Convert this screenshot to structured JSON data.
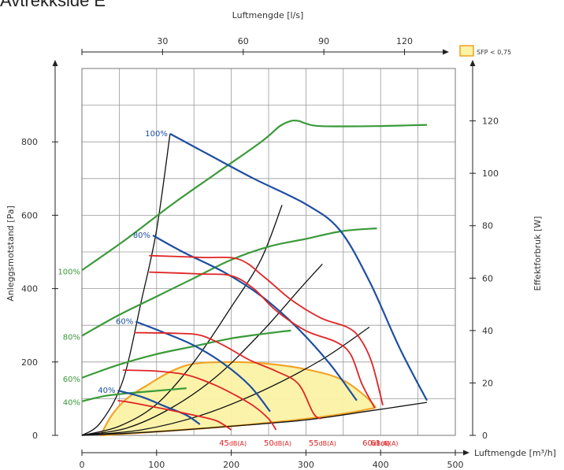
{
  "page": {
    "title": "Avtrekkside E"
  },
  "colors": {
    "fan_curve": "#1f4fa0",
    "power_curve": "#3a9a3a",
    "noise_curve": "#e02424",
    "system_curve": "#111111",
    "sfp_fill": "#fbf3a6",
    "sfp_edge": "#f2a01e",
    "grid": "#9a9a9a"
  },
  "chart_data": {
    "type": "line",
    "axes": {
      "x_bottom": {
        "label": "Luftmengde [m³/h]",
        "range": [
          0,
          500
        ],
        "ticks": [
          0,
          100,
          200,
          300,
          400,
          500
        ]
      },
      "x_top": {
        "label": "Luftmengde [l/s]",
        "ticks": [
          30,
          60,
          90,
          120
        ]
      },
      "y_left": {
        "label": "Anleggsmotstand [Pa]",
        "range": [
          0,
          1000
        ],
        "ticks": [
          0,
          200,
          400,
          600,
          800
        ]
      },
      "y_right": {
        "label": "Effektforbruk [W]",
        "range": [
          0,
          140
        ],
        "ticks": [
          0,
          20,
          40,
          60,
          80,
          100,
          120
        ]
      }
    },
    "grid": true,
    "legend": {
      "position": "top-right",
      "label": "SFP < 0,75"
    },
    "fan_curves": [
      {
        "name": "100%",
        "points": [
          [
            118,
            822
          ],
          [
            170,
            765
          ],
          [
            230,
            700
          ],
          [
            300,
            630
          ],
          [
            345,
            560
          ],
          [
            385,
            420
          ],
          [
            425,
            240
          ],
          [
            462,
            95
          ]
        ]
      },
      {
        "name": "80%",
        "points": [
          [
            95,
            545
          ],
          [
            135,
            500
          ],
          [
            190,
            445
          ],
          [
            240,
            380
          ],
          [
            285,
            300
          ],
          [
            330,
            200
          ],
          [
            368,
            95
          ]
        ]
      },
      {
        "name": "60%",
        "points": [
          [
            72,
            310
          ],
          [
            110,
            280
          ],
          [
            150,
            245
          ],
          [
            190,
            195
          ],
          [
            225,
            135
          ],
          [
            252,
            65
          ]
        ]
      },
      {
        "name": "40%",
        "points": [
          [
            48,
            122
          ],
          [
            80,
            105
          ],
          [
            110,
            80
          ],
          [
            140,
            55
          ],
          [
            158,
            30
          ]
        ]
      }
    ],
    "power_curves": [
      {
        "name": "100%",
        "y_axis": "right",
        "points": [
          [
            0,
            63
          ],
          [
            60,
            75
          ],
          [
            120,
            88
          ],
          [
            180,
            100
          ],
          [
            240,
            112
          ],
          [
            265,
            118
          ],
          [
            280,
            120
          ],
          [
            290,
            120
          ],
          [
            300,
            119
          ],
          [
            320,
            118
          ],
          [
            390,
            118
          ],
          [
            462,
            118.5
          ]
        ]
      },
      {
        "name": "80%",
        "y_axis": "right",
        "points": [
          [
            0,
            38
          ],
          [
            50,
            46
          ],
          [
            100,
            53
          ],
          [
            150,
            60
          ],
          [
            200,
            67
          ],
          [
            250,
            72
          ],
          [
            300,
            75
          ],
          [
            350,
            78
          ],
          [
            395,
            79
          ]
        ]
      },
      {
        "name": "60%",
        "y_axis": "right",
        "points": [
          [
            0,
            22
          ],
          [
            50,
            27
          ],
          [
            100,
            31
          ],
          [
            150,
            34
          ],
          [
            200,
            37
          ],
          [
            250,
            39
          ],
          [
            280,
            40
          ]
        ]
      },
      {
        "name": "40%",
        "y_axis": "right",
        "points": [
          [
            0,
            13
          ],
          [
            30,
            15
          ],
          [
            60,
            16
          ],
          [
            100,
            17
          ],
          [
            140,
            18
          ]
        ]
      }
    ],
    "noise_curves": [
      {
        "name": "45dB(A)",
        "points": [
          [
            48,
            95
          ],
          [
            70,
            88
          ],
          [
            110,
            72
          ],
          [
            150,
            55
          ],
          [
            180,
            40
          ],
          [
            200,
            15
          ]
        ]
      },
      {
        "name": "50dB(A)",
        "points": [
          [
            55,
            178
          ],
          [
            100,
            175
          ],
          [
            140,
            165
          ],
          [
            175,
            140
          ],
          [
            205,
            110
          ],
          [
            230,
            80
          ],
          [
            250,
            45
          ],
          [
            260,
            15
          ]
        ]
      },
      {
        "name": "55dB(A)",
        "points": [
          [
            70,
            280
          ],
          [
            130,
            278
          ],
          [
            160,
            272
          ],
          [
            190,
            245
          ],
          [
            225,
            205
          ],
          [
            260,
            175
          ],
          [
            290,
            140
          ],
          [
            310,
            60
          ],
          [
            320,
            45
          ]
        ]
      },
      {
        "name": "60dB(A)",
        "points": [
          [
            90,
            445
          ],
          [
            160,
            440
          ],
          [
            200,
            435
          ],
          [
            230,
            400
          ],
          [
            260,
            340
          ],
          [
            300,
            285
          ],
          [
            340,
            255
          ],
          [
            360,
            220
          ],
          [
            375,
            140
          ],
          [
            392,
            75
          ]
        ]
      },
      {
        "name": "61dB(A)",
        "points": [
          [
            90,
            490
          ],
          [
            160,
            485
          ],
          [
            210,
            480
          ],
          [
            245,
            430
          ],
          [
            280,
            370
          ],
          [
            320,
            320
          ],
          [
            355,
            295
          ],
          [
            372,
            265
          ],
          [
            388,
            200
          ],
          [
            403,
            82
          ]
        ]
      }
    ],
    "system_curves": [
      {
        "points": [
          [
            0,
            0
          ],
          [
            25,
            35
          ],
          [
            55,
            150
          ],
          [
            80,
            370
          ],
          [
            100,
            560
          ],
          [
            118,
            822
          ]
        ]
      },
      {
        "points": [
          [
            0,
            0
          ],
          [
            50,
            25
          ],
          [
            100,
            85
          ],
          [
            150,
            200
          ],
          [
            200,
            350
          ],
          [
            240,
            480
          ],
          [
            268,
            628
          ]
        ]
      },
      {
        "points": [
          [
            0,
            0
          ],
          [
            60,
            20
          ],
          [
            120,
            75
          ],
          [
            180,
            160
          ],
          [
            240,
            280
          ],
          [
            290,
            395
          ],
          [
            322,
            467
          ]
        ]
      },
      {
        "points": [
          [
            0,
            0
          ],
          [
            80,
            15
          ],
          [
            160,
            55
          ],
          [
            240,
            120
          ],
          [
            320,
            205
          ],
          [
            385,
            295
          ]
        ]
      },
      {
        "points": [
          [
            0,
            0
          ],
          [
            100,
            10
          ],
          [
            200,
            25
          ],
          [
            300,
            42
          ],
          [
            380,
            65
          ],
          [
            462,
            90
          ]
        ]
      }
    ],
    "sfp_region": {
      "label": "SFP < 0,75",
      "points": [
        [
          25,
          0
        ],
        [
          40,
          55
        ],
        [
          60,
          100
        ],
        [
          90,
          140
        ],
        [
          120,
          175
        ],
        [
          150,
          195
        ],
        [
          200,
          200
        ],
        [
          250,
          195
        ],
        [
          300,
          180
        ],
        [
          350,
          150
        ],
        [
          390,
          85
        ],
        [
          380,
          70
        ],
        [
          300,
          45
        ],
        [
          200,
          25
        ],
        [
          100,
          10
        ],
        [
          25,
          0
        ]
      ]
    },
    "labels": {
      "fan_speed": [
        {
          "text": "100%",
          "anchor": "fan_curves.0"
        },
        {
          "text": "80%",
          "anchor": "fan_curves.1"
        },
        {
          "text": "60%",
          "anchor": "fan_curves.2"
        },
        {
          "text": "40%",
          "anchor": "fan_curves.3"
        }
      ],
      "power_speed": [
        {
          "text": "100%",
          "anchor": "power_curves.0"
        },
        {
          "text": "80%",
          "anchor": "power_curves.1"
        },
        {
          "text": "60%",
          "anchor": "power_curves.2"
        },
        {
          "text": "40%",
          "anchor": "power_curves.3"
        }
      ],
      "noise": [
        {
          "value": "45",
          "unit": "dB(A)"
        },
        {
          "value": "50",
          "unit": "dB(A)"
        },
        {
          "value": "55",
          "unit": "dB(A)"
        },
        {
          "value": "60",
          "unit": "dB(A)"
        },
        {
          "value": "61",
          "unit": "dB(A)"
        }
      ]
    }
  }
}
